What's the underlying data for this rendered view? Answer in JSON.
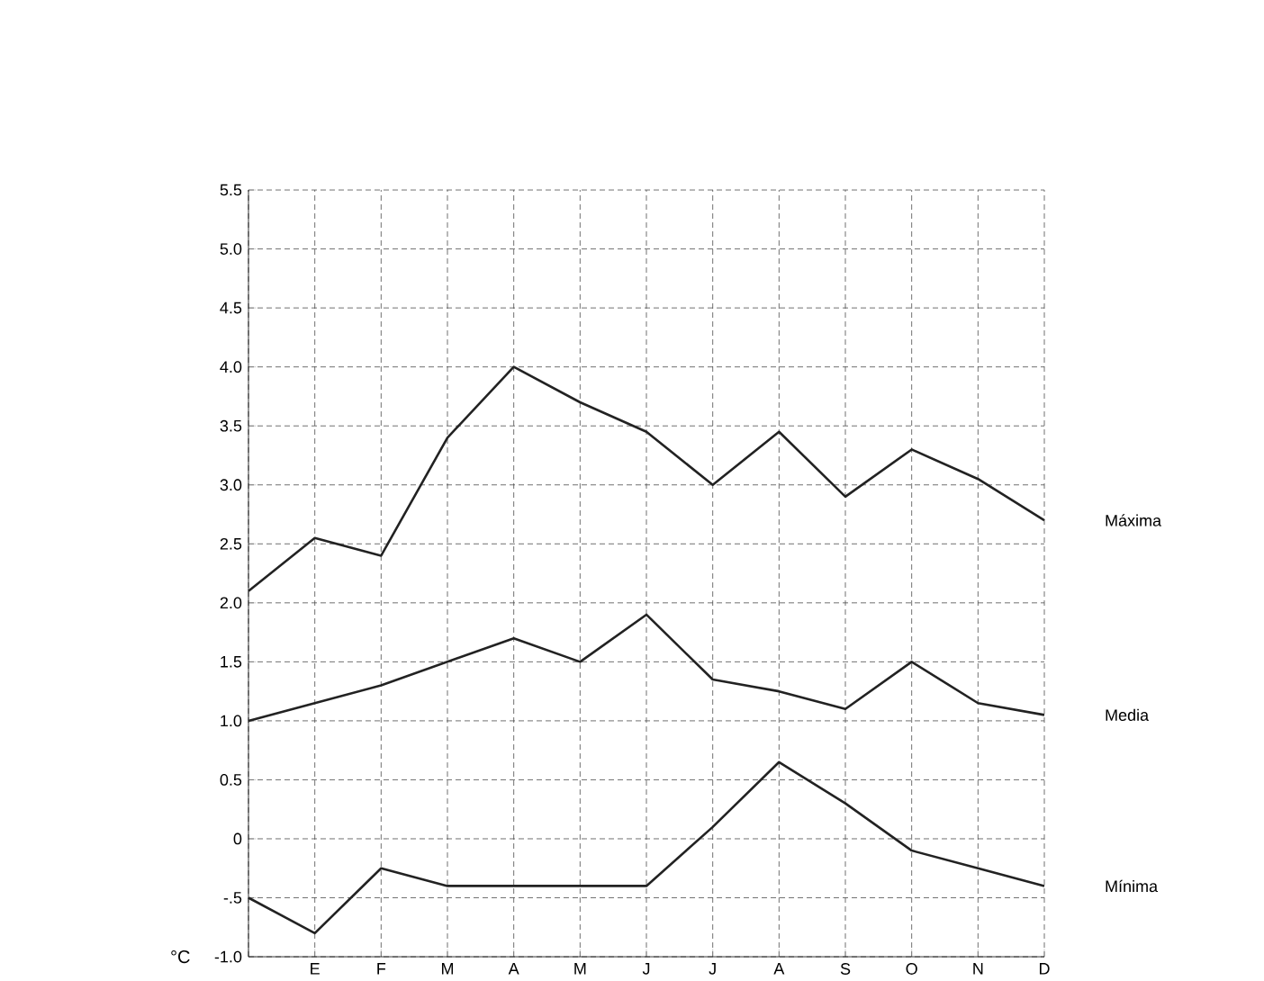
{
  "chart_data": {
    "type": "line",
    "ylabel": "°C",
    "categories": [
      null,
      "E",
      "F",
      "M",
      "A",
      "M",
      "J",
      "J",
      "A",
      "S",
      "O",
      "N",
      "D"
    ],
    "series": [
      {
        "name": "Máxima",
        "color": "#222222",
        "values": [
          2.1,
          2.55,
          2.4,
          3.4,
          4.0,
          3.7,
          3.45,
          3.0,
          3.45,
          2.9,
          3.3,
          3.05,
          2.7
        ]
      },
      {
        "name": "Media",
        "color": "#222222",
        "values": [
          1.0,
          1.15,
          1.3,
          1.5,
          1.7,
          1.5,
          1.9,
          1.35,
          1.25,
          1.1,
          1.5,
          1.15,
          1.05
        ]
      },
      {
        "name": "Mínima",
        "color": "#222222",
        "values": [
          -0.5,
          -0.8,
          -0.25,
          -0.4,
          -0.4,
          -0.4,
          -0.4,
          0.1,
          0.65,
          0.3,
          -0.1,
          -0.25,
          -0.4
        ]
      }
    ],
    "ylim": [
      -1.0,
      5.5
    ],
    "yticks": [
      {
        "value": 5.5,
        "label": "5.5"
      },
      {
        "value": 5.0,
        "label": "5.0"
      },
      {
        "value": 4.5,
        "label": "4.5"
      },
      {
        "value": 4.0,
        "label": "4.0"
      },
      {
        "value": 3.5,
        "label": "3.5"
      },
      {
        "value": 3.0,
        "label": "3.0"
      },
      {
        "value": 2.5,
        "label": "2.5"
      },
      {
        "value": 2.0,
        "label": "2.0"
      },
      {
        "value": 1.5,
        "label": "1.5"
      },
      {
        "value": 1.0,
        "label": "1.0"
      },
      {
        "value": 0.5,
        "label": "0.5"
      },
      0,
      {
        "value": -0.5,
        "label": "-.5"
      },
      {
        "value": -1.0,
        "label": "-1.0"
      }
    ],
    "grid": true,
    "marker": "none",
    "line_style": "solid"
  }
}
